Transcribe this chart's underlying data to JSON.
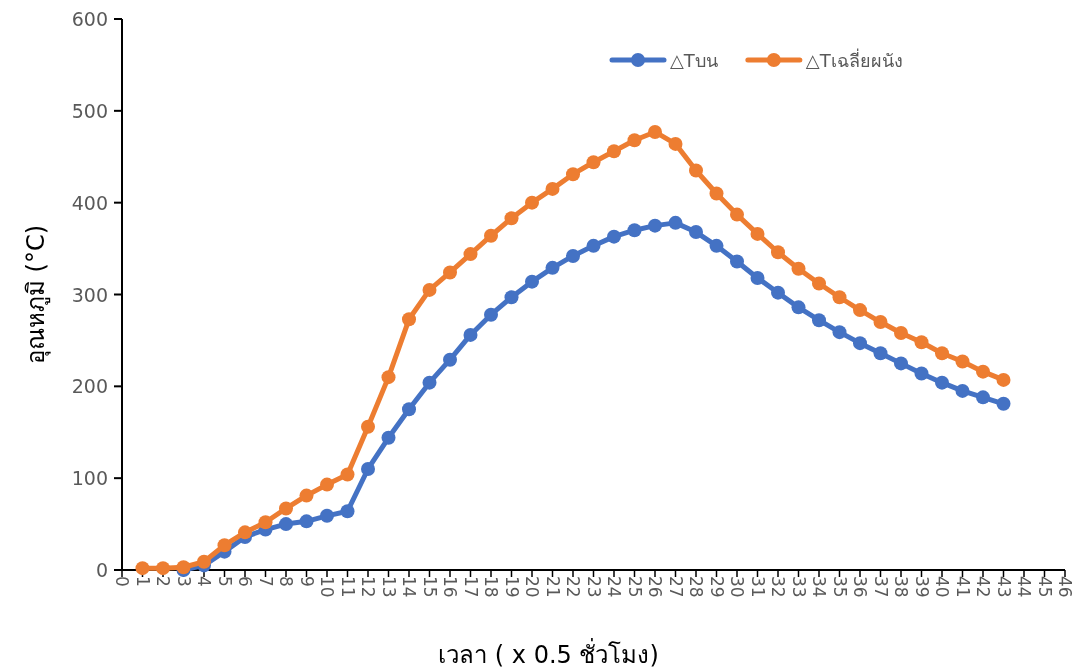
{
  "chart_data": {
    "type": "line",
    "xlabel": "เวลา ( x 0.5 ชั่วโมง)",
    "ylabel": "อุณหภูมิ (°C)",
    "x": [
      1,
      2,
      3,
      4,
      5,
      6,
      7,
      8,
      9,
      10,
      11,
      12,
      13,
      14,
      15,
      16,
      17,
      18,
      19,
      20,
      21,
      22,
      23,
      24,
      25,
      26,
      27,
      28,
      29,
      30,
      31,
      32,
      33,
      34,
      35,
      36,
      37,
      38,
      39,
      40,
      41,
      42,
      43
    ],
    "series": [
      {
        "name": "△Tบน",
        "color": "#4472c4",
        "values": [
          null,
          null,
          0,
          5,
          20,
          36,
          44,
          50,
          53,
          59,
          64,
          110,
          144,
          175,
          204,
          229,
          256,
          278,
          297,
          314,
          329,
          342,
          353,
          363,
          370,
          375,
          378,
          368,
          353,
          336,
          318,
          302,
          286,
          272,
          259,
          247,
          236,
          225,
          214,
          204,
          195,
          188,
          181
        ]
      },
      {
        "name": "△Tเฉลี่ยผนัง",
        "color": "#ed7d31",
        "values": [
          2,
          2,
          3,
          9,
          27,
          41,
          52,
          67,
          81,
          93,
          104,
          156,
          210,
          273,
          305,
          324,
          344,
          364,
          383,
          400,
          415,
          431,
          444,
          456,
          468,
          477,
          464,
          435,
          410,
          387,
          366,
          346,
          328,
          312,
          297,
          283,
          270,
          258,
          248,
          236,
          227,
          216,
          207
        ]
      }
    ],
    "xlim": [
      0,
      46
    ],
    "xticks": [
      0,
      1,
      2,
      3,
      4,
      5,
      6,
      7,
      8,
      9,
      10,
      11,
      12,
      13,
      14,
      15,
      16,
      17,
      18,
      19,
      20,
      21,
      22,
      23,
      24,
      25,
      26,
      27,
      28,
      29,
      30,
      31,
      32,
      33,
      34,
      35,
      36,
      37,
      38,
      39,
      40,
      41,
      42,
      43,
      44,
      45,
      46
    ],
    "ylim": [
      0,
      600
    ],
    "yticks": [
      0,
      100,
      200,
      300,
      400,
      500,
      600
    ],
    "legend": "top right",
    "marker": "circle",
    "line_style": "solid"
  }
}
